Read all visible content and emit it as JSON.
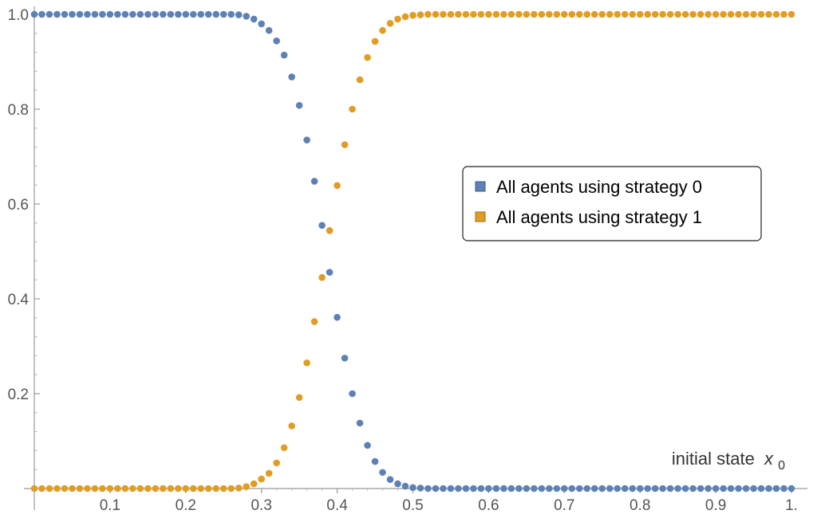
{
  "chart_data": {
    "type": "scatter",
    "xlabel": "initial state",
    "xlabel_var": "x",
    "xlabel_sub": "0",
    "xlim": [
      0,
      1
    ],
    "ylim": [
      0,
      1
    ],
    "x_ticks": [
      {
        "value": 0.1,
        "label": "0.1"
      },
      {
        "value": 0.2,
        "label": "0.2"
      },
      {
        "value": 0.3,
        "label": "0.3"
      },
      {
        "value": 0.4,
        "label": "0.4"
      },
      {
        "value": 0.5,
        "label": "0.5"
      },
      {
        "value": 0.6,
        "label": "0.6"
      },
      {
        "value": 0.7,
        "label": "0.7"
      },
      {
        "value": 0.8,
        "label": "0.8"
      },
      {
        "value": 0.9,
        "label": "0.9"
      },
      {
        "value": 1.0,
        "label": "1."
      }
    ],
    "y_ticks": [
      {
        "value": 0.2,
        "label": "0.2"
      },
      {
        "value": 0.4,
        "label": "0.4"
      },
      {
        "value": 0.6,
        "label": "0.6"
      },
      {
        "value": 0.8,
        "label": "0.8"
      },
      {
        "value": 1.0,
        "label": "1.0"
      }
    ],
    "legend_position": "right",
    "x": [
      0.0,
      0.01,
      0.02,
      0.03,
      0.04,
      0.05,
      0.06,
      0.07,
      0.08,
      0.09,
      0.1,
      0.11,
      0.12,
      0.13,
      0.14,
      0.15,
      0.16,
      0.17,
      0.18,
      0.19,
      0.2,
      0.21,
      0.22,
      0.23,
      0.24,
      0.25,
      0.26,
      0.27,
      0.28,
      0.29,
      0.3,
      0.31,
      0.32,
      0.33,
      0.34,
      0.35,
      0.36,
      0.37,
      0.38,
      0.39,
      0.4,
      0.41,
      0.42,
      0.43,
      0.44,
      0.45,
      0.46,
      0.47,
      0.48,
      0.49,
      0.5,
      0.51,
      0.52,
      0.53,
      0.54,
      0.55,
      0.56,
      0.57,
      0.58,
      0.59,
      0.6,
      0.61,
      0.62,
      0.63,
      0.64,
      0.65,
      0.66,
      0.67,
      0.68,
      0.69,
      0.7,
      0.71,
      0.72,
      0.73,
      0.74,
      0.75,
      0.76,
      0.77,
      0.78,
      0.79,
      0.8,
      0.81,
      0.82,
      0.83,
      0.84,
      0.85,
      0.86,
      0.87,
      0.88,
      0.89,
      0.9,
      0.91,
      0.92,
      0.93,
      0.94,
      0.95,
      0.96,
      0.97,
      0.98,
      0.99,
      1.0
    ],
    "series": [
      {
        "name": "All agents using strategy 0",
        "color": "#5e81b5",
        "values": [
          1,
          1,
          1,
          1,
          1,
          1,
          1,
          1,
          1,
          1,
          1,
          1,
          1,
          1,
          1,
          1,
          1,
          1,
          1,
          1,
          1,
          1,
          1,
          1,
          1,
          1,
          1,
          0.999,
          0.996,
          0.99,
          0.98,
          0.966,
          0.944,
          0.914,
          0.868,
          0.808,
          0.735,
          0.648,
          0.555,
          0.456,
          0.361,
          0.275,
          0.2,
          0.138,
          0.091,
          0.057,
          0.034,
          0.019,
          0.01,
          0.005,
          0.002,
          0.001,
          0,
          0,
          0,
          0,
          0,
          0,
          0,
          0,
          0,
          0,
          0,
          0,
          0,
          0,
          0,
          0,
          0,
          0,
          0,
          0,
          0,
          0,
          0,
          0,
          0,
          0,
          0,
          0,
          0,
          0,
          0,
          0,
          0,
          0,
          0,
          0,
          0,
          0,
          0,
          0,
          0,
          0,
          0,
          0,
          0,
          0,
          0,
          0,
          0
        ]
      },
      {
        "name": "All agents using strategy 1",
        "color": "#e19c24",
        "values": [
          0,
          0,
          0,
          0,
          0,
          0,
          0,
          0,
          0,
          0,
          0,
          0,
          0,
          0,
          0,
          0,
          0,
          0,
          0,
          0,
          0,
          0,
          0,
          0,
          0,
          0,
          0,
          0.001,
          0.004,
          0.01,
          0.02,
          0.032,
          0.054,
          0.086,
          0.132,
          0.192,
          0.265,
          0.352,
          0.445,
          0.544,
          0.639,
          0.725,
          0.8,
          0.862,
          0.909,
          0.943,
          0.966,
          0.981,
          0.99,
          0.995,
          0.998,
          0.999,
          1,
          1,
          1,
          1,
          1,
          1,
          1,
          1,
          1,
          1,
          1,
          1,
          1,
          1,
          1,
          1,
          1,
          1,
          1,
          1,
          1,
          1,
          1,
          1,
          1,
          1,
          1,
          1,
          1,
          1,
          1,
          1,
          1,
          1,
          1,
          1,
          1,
          1,
          1,
          1,
          1,
          1,
          1,
          1,
          1,
          1,
          1,
          1,
          1
        ]
      }
    ]
  }
}
